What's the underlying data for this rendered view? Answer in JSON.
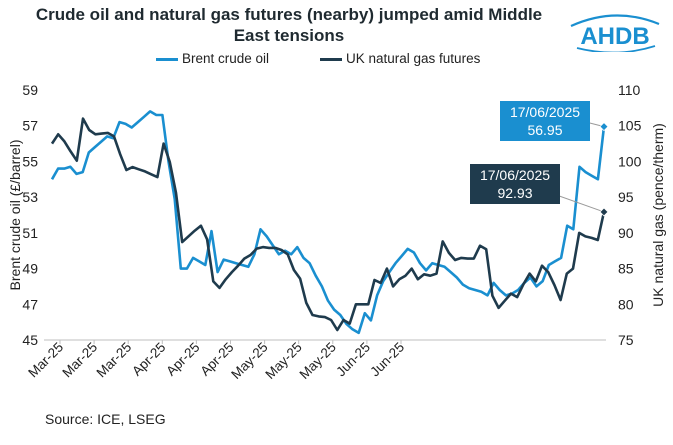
{
  "title": "Crude oil and natural gas futures (nearby) jumped amid Middle East tensions",
  "logo_text": "AHDB",
  "source": "Source: ICE, LSEG",
  "colors": {
    "brent": "#1a8fd0",
    "gas": "#1f3b4d",
    "axis": "#bfbfbf",
    "text": "#222222"
  },
  "callouts": [
    {
      "date": "17/06/2025",
      "value": "56.95",
      "series": "Brent crude oil"
    },
    {
      "date": "17/06/2025",
      "value": "92.93",
      "series": "UK natural gas futures"
    }
  ],
  "chart_data": {
    "type": "line",
    "title": "Crude oil and natural gas futures (nearby) jumped amid Middle East tensions",
    "x_tick_labels": [
      "Mar-25",
      "Mar-25",
      "Mar-25",
      "Apr-25",
      "Apr-25",
      "Apr-25",
      "May-25",
      "May-25",
      "May-25",
      "Jun-25",
      "Jun-25"
    ],
    "y_left": {
      "label": "Brent crude oil (£/barrel)",
      "range": [
        45,
        59
      ],
      "ticks": [
        45,
        47,
        49,
        51,
        53,
        55,
        57,
        59
      ]
    },
    "y_right": {
      "label": "UK natural gas (pence/therm)",
      "range": [
        75,
        110
      ],
      "ticks": [
        75,
        80,
        85,
        90,
        95,
        100,
        105,
        110
      ]
    },
    "legend": "top",
    "series": [
      {
        "name": "Brent crude oil",
        "axis": "left",
        "values": [
          54.0,
          54.6,
          54.6,
          54.7,
          54.3,
          54.4,
          55.5,
          55.8,
          56.1,
          56.4,
          56.3,
          57.2,
          57.1,
          56.9,
          57.2,
          57.5,
          57.8,
          57.6,
          57.6,
          55.0,
          52.9,
          49.0,
          49.0,
          49.6,
          49.4,
          49.2,
          51.1,
          48.8,
          49.5,
          49.4,
          49.3,
          49.2,
          49.1,
          49.8,
          51.2,
          50.8,
          50.3,
          49.8,
          50.0,
          49.8,
          50.2,
          49.6,
          49.3,
          48.6,
          48.0,
          47.2,
          46.7,
          46.4,
          45.9,
          45.6,
          45.4,
          46.5,
          46.1,
          47.5,
          48.3,
          48.8,
          49.3,
          49.7,
          50.1,
          49.9,
          49.3,
          48.9,
          49.3,
          49.2,
          49.1,
          48.8,
          48.5,
          48.1,
          47.9,
          47.8,
          47.7,
          47.5,
          48.2,
          47.8,
          47.5,
          47.6,
          47.8,
          48.2,
          48.5,
          48.0,
          48.3,
          49.2,
          49.4,
          49.6,
          51.4,
          51.2,
          54.7,
          54.4,
          54.2,
          54.0,
          56.95
        ]
      },
      {
        "name": "UK natural gas futures",
        "axis": "right",
        "values": [
          102.5,
          103.8,
          102.8,
          101.4,
          100.1,
          106.0,
          104.4,
          103.8,
          103.9,
          104.0,
          103.5,
          101.0,
          98.8,
          99.2,
          98.9,
          98.6,
          98.2,
          97.8,
          102.5,
          99.9,
          95.6,
          88.7,
          89.5,
          90.3,
          91.0,
          89.1,
          83.2,
          82.3,
          83.5,
          84.5,
          85.4,
          86.4,
          86.9,
          87.8,
          88.0,
          87.9,
          87.9,
          87.6,
          87.0,
          84.8,
          83.6,
          80.2,
          78.5,
          78.3,
          78.2,
          77.8,
          76.4,
          77.8,
          77.3,
          80.0,
          80.0,
          80.0,
          83.4,
          83.0,
          85.0,
          82.5,
          83.5,
          84.0,
          85.0,
          83.5,
          84.2,
          84.0,
          84.3,
          88.8,
          87.2,
          86.2,
          86.5,
          86.4,
          86.4,
          88.2,
          87.7,
          81.2,
          79.5,
          80.5,
          81.5,
          81.0,
          82.8,
          84.3,
          83.2,
          85.4,
          84.5,
          82.7,
          80.6,
          84.3,
          85.0,
          90.0,
          89.5,
          89.3,
          89.0,
          92.93
        ]
      }
    ]
  }
}
